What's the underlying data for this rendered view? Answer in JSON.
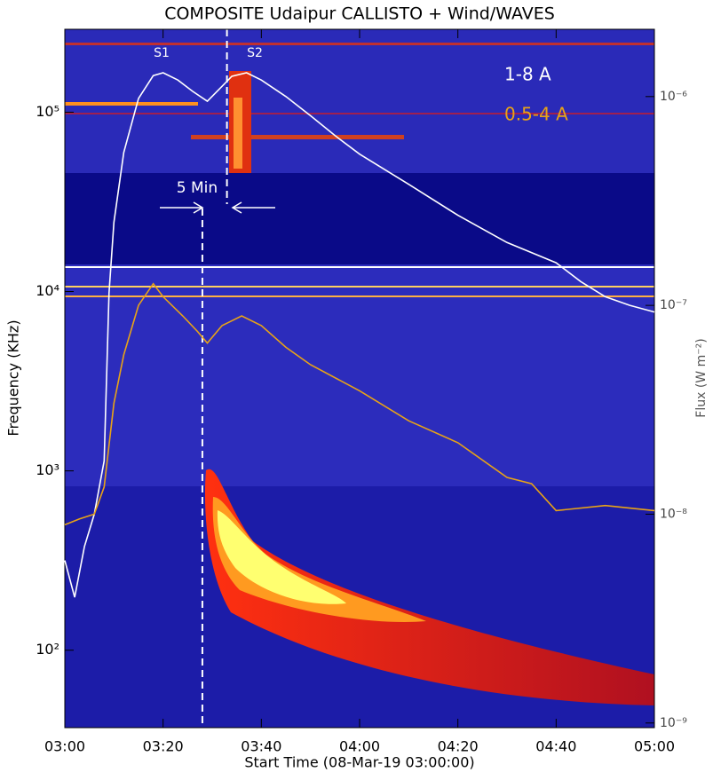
{
  "chart_data": {
    "type": "line",
    "title": "COMPOSITE Udaipur CALLISTO + Wind/WAVES",
    "x_label": "Start Time (08-Mar-19 03:00:00)",
    "y_label": "Frequency (KHz)",
    "y2_label": "Flux (W m⁻²)",
    "y_log": true,
    "y2_log": true,
    "xlim": [
      "03:00",
      "05:00"
    ],
    "xticks": [
      "03:00",
      "03:20",
      "03:40",
      "04:00",
      "04:20",
      "04:40",
      "05:00"
    ],
    "ylim": [
      37,
      290000
    ],
    "yticks": [
      {
        "value": 100,
        "label": "10²"
      },
      {
        "value": 1000,
        "label": "10³"
      },
      {
        "value": 10000,
        "label": "10⁴"
      },
      {
        "value": 100000,
        "label": "10⁵"
      }
    ],
    "y2lim": [
      9.5e-10,
      2.1e-06
    ],
    "y2ticks": [
      {
        "value": 1e-09,
        "label": "10⁻⁹"
      },
      {
        "value": 1e-08,
        "label": "10⁻⁸"
      },
      {
        "value": 1e-07,
        "label": "10⁻⁷"
      },
      {
        "value": 1e-06,
        "label": "10⁻⁶"
      }
    ],
    "annotations": [
      "S1",
      "S2",
      "5 Min"
    ],
    "markers": [
      "03:28",
      "03:33"
    ],
    "series": [
      {
        "name": "1-8 A",
        "color": "#ffffff",
        "axis": "y2",
        "x": [
          "03:00",
          "03:02",
          "03:04",
          "03:06",
          "03:08",
          "03:09",
          "03:10",
          "03:12",
          "03:15",
          "03:18",
          "03:20",
          "03:23",
          "03:26",
          "03:29",
          "03:31",
          "03:34",
          "03:37",
          "03:40",
          "03:45",
          "03:50",
          "03:55",
          "04:00",
          "04:10",
          "04:20",
          "04:30",
          "04:40",
          "04:45",
          "04:50",
          "04:55",
          "05:00"
        ],
        "values": [
          6e-09,
          4e-09,
          7e-09,
          1e-08,
          1.8e-08,
          1.15e-07,
          2.5e-07,
          5.4e-07,
          9.8e-07,
          1.26e-06,
          1.3e-06,
          1.2e-06,
          1.06e-06,
          9.5e-07,
          1.06e-06,
          1.25e-06,
          1.3e-06,
          1.2e-06,
          1e-06,
          8.1e-07,
          6.5e-07,
          5.3e-07,
          3.8e-07,
          2.7e-07,
          2e-07,
          1.6e-07,
          1.3e-07,
          1.1e-07,
          1e-07,
          9.3e-08
        ]
      },
      {
        "name": "0.5-4 A",
        "color": "#e8a317",
        "axis": "y2",
        "x": [
          "03:00",
          "03:03",
          "03:06",
          "03:08",
          "03:10",
          "03:12",
          "03:15",
          "03:18",
          "03:20",
          "03:24",
          "03:27",
          "03:29",
          "03:32",
          "03:36",
          "03:40",
          "03:45",
          "03:50",
          "04:00",
          "04:10",
          "04:20",
          "04:30",
          "04:35",
          "04:40",
          "04:50",
          "05:00"
        ],
        "values": [
          8.9e-09,
          9.5e-09,
          1e-08,
          1.35e-08,
          3.4e-08,
          5.8e-08,
          1e-07,
          1.27e-07,
          1.1e-07,
          8.9e-08,
          7.5e-08,
          6.6e-08,
          8e-08,
          8.9e-08,
          8e-08,
          6.3e-08,
          5.2e-08,
          3.9e-08,
          2.8e-08,
          2.2e-08,
          1.5e-08,
          1.4e-08,
          1.04e-08,
          1.1e-08,
          1.04e-08
        ]
      }
    ]
  }
}
